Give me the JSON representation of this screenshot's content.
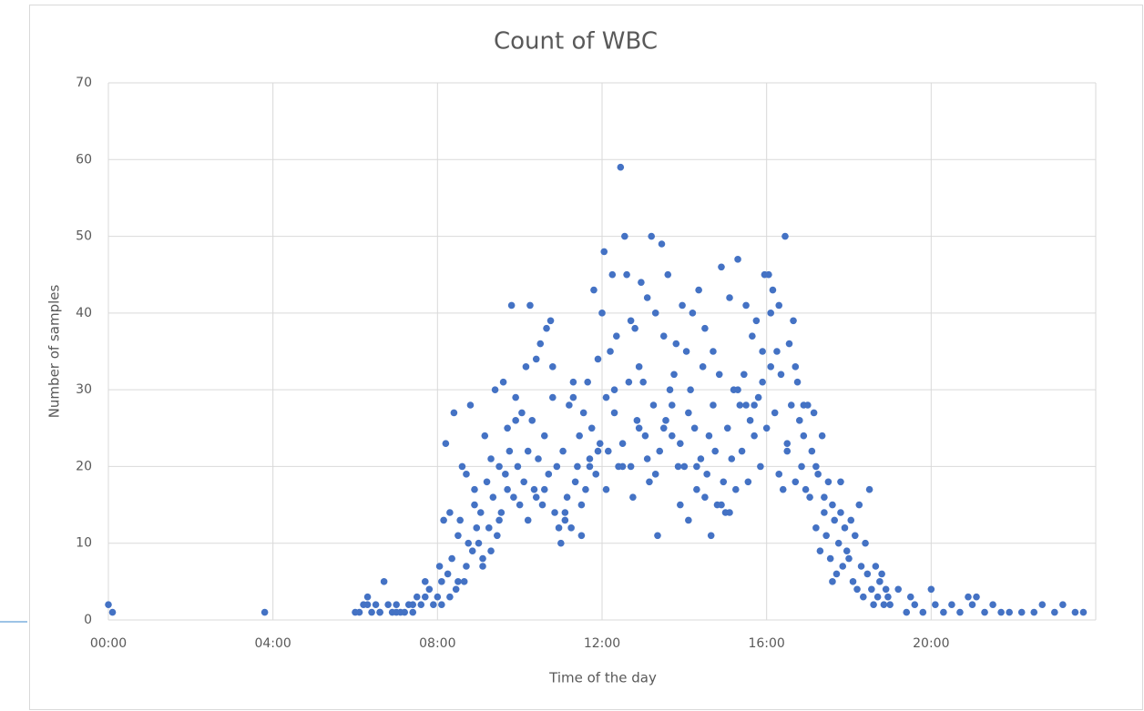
{
  "chart_data": {
    "type": "scatter",
    "title": "Count of WBC",
    "x_label": "Time of the day",
    "y_label": "Number of samples",
    "color": "#4472c4",
    "grid": true,
    "xlim": [
      0,
      24
    ],
    "ylim": [
      0,
      70
    ],
    "xticks": [
      {
        "value": 0,
        "label": "00:00"
      },
      {
        "value": 4,
        "label": "04:00"
      },
      {
        "value": 8,
        "label": "08:00"
      },
      {
        "value": 12,
        "label": "12:00"
      },
      {
        "value": 16,
        "label": "16:00"
      },
      {
        "value": 20,
        "label": "20:00"
      }
    ],
    "yticks": [
      0,
      10,
      20,
      30,
      40,
      50,
      60,
      70
    ],
    "x": [
      0,
      0.1,
      3.8,
      6.0,
      6.1,
      6.2,
      6.3,
      6.4,
      6.5,
      6.6,
      6.7,
      6.8,
      6.9,
      7.0,
      7.1,
      7.2,
      7.3,
      7.4,
      7.5,
      7.6,
      7.7,
      7.8,
      7.9,
      6.3,
      6.6,
      7.0,
      7.4,
      7.7,
      8.0,
      8.05,
      8.1,
      8.15,
      8.2,
      8.25,
      8.3,
      8.35,
      8.4,
      8.45,
      8.5,
      8.55,
      8.6,
      8.65,
      8.7,
      8.75,
      8.8,
      8.85,
      8.9,
      8.95,
      8.1,
      8.3,
      8.5,
      8.7,
      8.9,
      9.0,
      9.05,
      9.1,
      9.15,
      9.2,
      9.25,
      9.3,
      9.35,
      9.4,
      9.45,
      9.5,
      9.55,
      9.6,
      9.65,
      9.7,
      9.75,
      9.8,
      9.85,
      9.9,
      9.95,
      9.1,
      9.3,
      9.5,
      9.7,
      9.9,
      10.0,
      10.05,
      10.1,
      10.15,
      10.2,
      10.25,
      10.3,
      10.35,
      10.4,
      10.45,
      10.5,
      10.55,
      10.6,
      10.65,
      10.7,
      10.75,
      10.8,
      10.85,
      10.9,
      10.95,
      10.2,
      10.4,
      10.6,
      10.8,
      11.0,
      11.05,
      11.1,
      11.15,
      11.2,
      11.25,
      11.3,
      11.35,
      11.4,
      11.45,
      11.5,
      11.55,
      11.6,
      11.65,
      11.7,
      11.75,
      11.8,
      11.85,
      11.9,
      11.95,
      11.1,
      11.3,
      11.5,
      11.7,
      11.9,
      12.0,
      12.05,
      12.1,
      12.15,
      12.2,
      12.25,
      12.3,
      12.35,
      12.4,
      12.45,
      12.5,
      12.55,
      12.6,
      12.65,
      12.7,
      12.75,
      12.8,
      12.85,
      12.9,
      12.95,
      12.1,
      12.3,
      12.5,
      12.7,
      12.9,
      13.0,
      13.05,
      13.1,
      13.15,
      13.2,
      13.25,
      13.3,
      13.35,
      13.4,
      13.45,
      13.5,
      13.55,
      13.6,
      13.65,
      13.7,
      13.75,
      13.8,
      13.85,
      13.9,
      13.95,
      13.1,
      13.3,
      13.5,
      13.7,
      13.9,
      14.0,
      14.05,
      14.1,
      14.15,
      14.2,
      14.25,
      14.3,
      14.35,
      14.4,
      14.45,
      14.5,
      14.55,
      14.6,
      14.65,
      14.7,
      14.75,
      14.8,
      14.85,
      14.9,
      14.95,
      14.1,
      14.3,
      14.5,
      14.7,
      14.9,
      15.0,
      15.05,
      15.1,
      15.15,
      15.2,
      15.25,
      15.3,
      15.35,
      15.4,
      15.45,
      15.5,
      15.55,
      15.6,
      15.65,
      15.7,
      15.75,
      15.8,
      15.85,
      15.9,
      15.95,
      15.1,
      15.3,
      15.5,
      15.7,
      15.9,
      16.0,
      16.05,
      16.1,
      16.15,
      16.2,
      16.25,
      16.3,
      16.35,
      16.4,
      16.45,
      16.5,
      16.55,
      16.6,
      16.65,
      16.7,
      16.75,
      16.8,
      16.85,
      16.9,
      16.95,
      16.1,
      16.3,
      16.5,
      16.7,
      16.9,
      17.0,
      17.05,
      17.1,
      17.15,
      17.2,
      17.25,
      17.3,
      17.35,
      17.4,
      17.45,
      17.5,
      17.55,
      17.6,
      17.65,
      17.7,
      17.75,
      17.8,
      17.85,
      17.9,
      17.95,
      17.2,
      17.4,
      17.6,
      17.8,
      18.0,
      18.05,
      18.1,
      18.15,
      18.2,
      18.25,
      18.3,
      18.35,
      18.4,
      18.45,
      18.5,
      18.55,
      18.6,
      18.65,
      18.7,
      18.75,
      18.8,
      18.85,
      18.9,
      18.95,
      19.0,
      19.2,
      19.4,
      19.5,
      19.6,
      19.8,
      20.0,
      20.1,
      20.3,
      20.5,
      20.7,
      20.9,
      21.0,
      21.1,
      21.3,
      21.5,
      21.7,
      21.9,
      22.2,
      22.5,
      22.7,
      23.0,
      23.2,
      23.5,
      23.7
    ],
    "values": [
      2,
      1,
      1,
      1,
      1,
      2,
      3,
      1,
      2,
      1,
      5,
      2,
      1,
      2,
      1,
      1,
      2,
      1,
      3,
      2,
      3,
      4,
      2,
      2,
      1,
      1,
      2,
      5,
      3,
      7,
      5,
      13,
      23,
      6,
      14,
      8,
      27,
      4,
      11,
      13,
      20,
      5,
      19,
      10,
      28,
      9,
      15,
      12,
      2,
      3,
      5,
      7,
      17,
      10,
      14,
      8,
      24,
      18,
      12,
      21,
      16,
      30,
      11,
      20,
      14,
      31,
      19,
      25,
      22,
      41,
      16,
      26,
      20,
      7,
      9,
      13,
      17,
      29,
      15,
      27,
      18,
      33,
      22,
      41,
      26,
      17,
      34,
      21,
      36,
      15,
      24,
      38,
      19,
      39,
      29,
      14,
      20,
      12,
      13,
      16,
      17,
      33,
      10,
      22,
      14,
      16,
      28,
      12,
      31,
      18,
      20,
      24,
      11,
      27,
      17,
      31,
      21,
      25,
      43,
      19,
      34,
      23,
      13,
      29,
      15,
      20,
      22,
      40,
      48,
      29,
      22,
      35,
      45,
      27,
      37,
      20,
      59,
      23,
      50,
      45,
      31,
      39,
      16,
      38,
      26,
      33,
      44,
      17,
      30,
      20,
      20,
      25,
      31,
      24,
      42,
      18,
      50,
      28,
      40,
      11,
      22,
      49,
      37,
      26,
      45,
      30,
      24,
      32,
      36,
      20,
      15,
      41,
      21,
      19,
      25,
      28,
      23,
      20,
      35,
      13,
      30,
      40,
      25,
      17,
      43,
      21,
      33,
      38,
      19,
      24,
      11,
      35,
      22,
      15,
      32,
      46,
      18,
      27,
      20,
      16,
      28,
      15,
      14,
      25,
      42,
      21,
      30,
      17,
      47,
      28,
      22,
      32,
      41,
      18,
      26,
      37,
      24,
      39,
      29,
      20,
      35,
      45,
      14,
      30,
      28,
      28,
      31,
      25,
      45,
      33,
      43,
      27,
      35,
      19,
      32,
      17,
      50,
      22,
      36,
      28,
      39,
      18,
      31,
      26,
      20,
      24,
      17,
      40,
      41,
      23,
      33,
      28,
      28,
      16,
      22,
      27,
      12,
      19,
      9,
      24,
      14,
      11,
      18,
      8,
      15,
      13,
      6,
      10,
      18,
      7,
      12,
      9,
      20,
      16,
      5,
      14,
      8,
      13,
      5,
      11,
      4,
      15,
      7,
      3,
      10,
      6,
      17,
      4,
      2,
      7,
      3,
      5,
      6,
      2,
      4,
      3,
      2,
      4,
      1,
      3,
      2,
      1,
      4,
      2,
      1,
      2,
      1,
      3,
      2,
      3,
      1,
      2,
      1,
      1,
      1,
      1,
      2,
      1,
      2,
      1,
      1
    ]
  }
}
